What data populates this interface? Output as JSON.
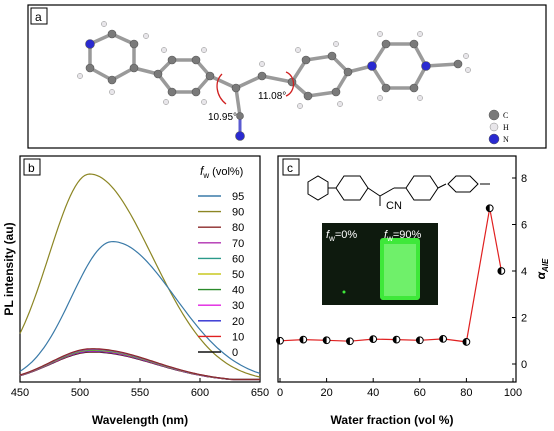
{
  "panels": {
    "a": {
      "tag": "a",
      "angle_left": "10.95°",
      "angle_right": "11.08°",
      "atom_legend": [
        {
          "symbol": "C",
          "color": "#7a7a7a"
        },
        {
          "symbol": "H",
          "color": "#e8e6ea"
        },
        {
          "symbol": "N",
          "color": "#2a2ad0"
        }
      ]
    },
    "b": {
      "tag": "b"
    },
    "c": {
      "tag": "c",
      "inset_left": "f_w=0%",
      "inset_right": "f_w=90%",
      "cn_label": "CN"
    }
  },
  "chart_data": [
    {
      "type": "line",
      "panel": "b",
      "xlabel": "Wavelength (nm)",
      "ylabel": "PL intensity (au)",
      "xlim": [
        450,
        650
      ],
      "xticks": [
        450,
        500,
        550,
        600,
        650
      ],
      "legend_title": "f_w (vol%)",
      "legend_position": "top-right",
      "series": [
        {
          "name": "95",
          "color": "#3a7aa8",
          "peak_x": 527,
          "peak_y": 0.675
        },
        {
          "name": "90",
          "color": "#8c8624",
          "peak_x": 508,
          "peak_y": 1.0
        },
        {
          "name": "80",
          "color": "#8b2a2a",
          "peak_x": 510,
          "peak_y": 0.16
        },
        {
          "name": "70",
          "color": "#b030b0",
          "peak_x": 510,
          "peak_y": 0.158
        },
        {
          "name": "60",
          "color": "#2a9a8a",
          "peak_x": 510,
          "peak_y": 0.156
        },
        {
          "name": "50",
          "color": "#c8c820",
          "peak_x": 510,
          "peak_y": 0.154
        },
        {
          "name": "40",
          "color": "#2a8a2a",
          "peak_x": 510,
          "peak_y": 0.152
        },
        {
          "name": "30",
          "color": "#e020e0",
          "peak_x": 510,
          "peak_y": 0.15
        },
        {
          "name": "20",
          "color": "#2a2ad0",
          "peak_x": 510,
          "peak_y": 0.148
        },
        {
          "name": "10",
          "color": "#e02020",
          "peak_x": 510,
          "peak_y": 0.146
        },
        {
          "name": "0",
          "color": "#111111",
          "peak_x": 510,
          "peak_y": 0.144
        }
      ]
    },
    {
      "type": "line",
      "panel": "c",
      "xlabel": "Water fraction (vol %)",
      "ylabel": "α_AIE",
      "xlim": [
        0,
        100
      ],
      "ylim": [
        0,
        8
      ],
      "xticks": [
        0,
        20,
        40,
        60,
        80,
        100
      ],
      "yticks": [
        0,
        2,
        4,
        6,
        8
      ],
      "x": [
        0,
        10,
        20,
        30,
        40,
        50,
        60,
        70,
        80,
        90,
        95
      ],
      "values": [
        1.0,
        1.05,
        1.02,
        0.98,
        1.07,
        1.05,
        1.02,
        1.08,
        0.95,
        6.7,
        4.0
      ]
    }
  ]
}
